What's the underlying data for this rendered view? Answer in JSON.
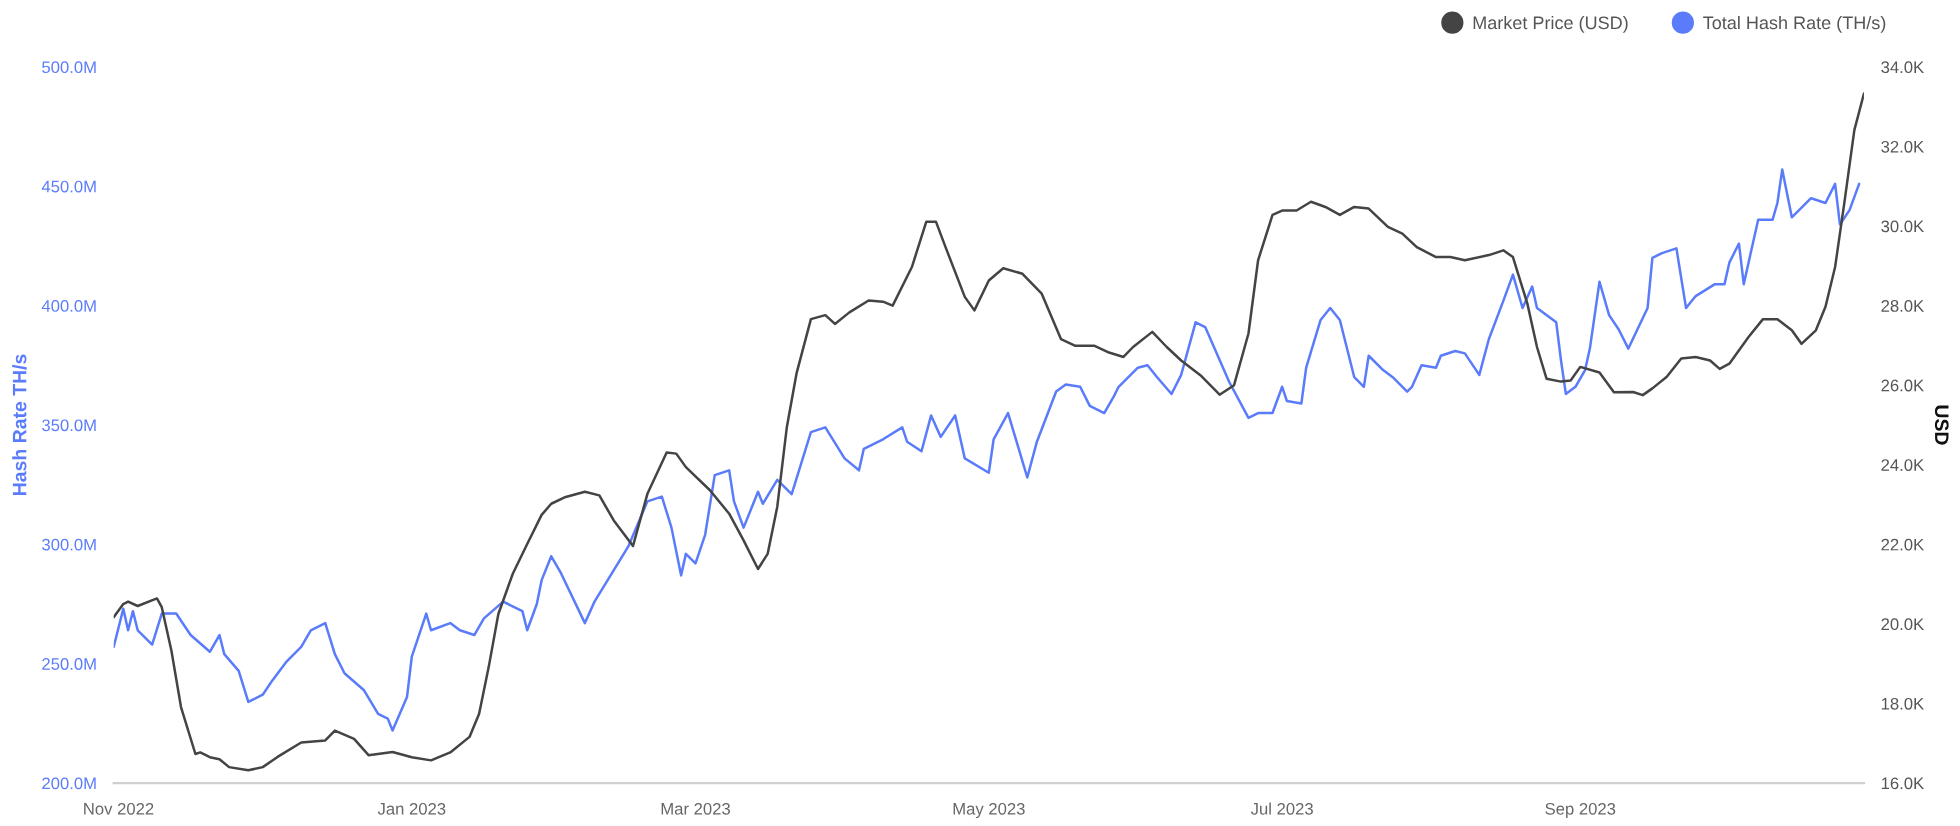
{
  "chart_data": {
    "type": "line",
    "legend": "top right",
    "ylabel": "Hash Rate TH/s",
    "y2label": "USD",
    "xlim": [
      "2022-10-31",
      "2023-10-30"
    ],
    "xticks": [
      {
        "value": "2022-11-01",
        "label": "Nov 2022"
      },
      {
        "value": "2023-01-01",
        "label": "Jan 2023"
      },
      {
        "value": "2023-03-01",
        "label": "Mar 2023"
      },
      {
        "value": "2023-05-01",
        "label": "May 2023"
      },
      {
        "value": "2023-07-01",
        "label": "Jul 2023"
      },
      {
        "value": "2023-09-01",
        "label": "Sep 2023"
      }
    ],
    "ylim": [
      200000000.0,
      500000000.0
    ],
    "yticks": [
      {
        "value": 200000000.0,
        "label": "200.0M"
      },
      {
        "value": 250000000.0,
        "label": "250.0M"
      },
      {
        "value": 300000000.0,
        "label": "300.0M"
      },
      {
        "value": 350000000.0,
        "label": "350.0M"
      },
      {
        "value": 400000000.0,
        "label": "400.0M"
      },
      {
        "value": 450000000.0,
        "label": "450.0M"
      },
      {
        "value": 500000000.0,
        "label": "500.0M"
      }
    ],
    "y2lim": [
      16000,
      34000
    ],
    "y2ticks": [
      {
        "value": 16000,
        "label": "16.0K"
      },
      {
        "value": 18000,
        "label": "18.0K"
      },
      {
        "value": 20000,
        "label": "20.0K"
      },
      {
        "value": 22000,
        "label": "22.0K"
      },
      {
        "value": 24000,
        "label": "24.0K"
      },
      {
        "value": 26000,
        "label": "26.0K"
      },
      {
        "value": 28000,
        "label": "28.0K"
      },
      {
        "value": 30000,
        "label": "30.0K"
      },
      {
        "value": 32000,
        "label": "32.0K"
      },
      {
        "value": 34000,
        "label": "34.0K"
      }
    ],
    "series": [
      {
        "name": "Market Price (USD)",
        "color": "#444444",
        "axis": "y2",
        "x": [
          "2022-10-31",
          "2022-11-02",
          "2022-11-03",
          "2022-11-05",
          "2022-11-09",
          "2022-11-10",
          "2022-11-12",
          "2022-11-14",
          "2022-11-17",
          "2022-11-18",
          "2022-11-20",
          "2022-11-22",
          "2022-11-24",
          "2022-11-28",
          "2022-12-01",
          "2022-12-04",
          "2022-12-09",
          "2022-12-14",
          "2022-12-16",
          "2022-12-20",
          "2022-12-23",
          "2022-12-28",
          "2023-01-01",
          "2023-01-05",
          "2023-01-09",
          "2023-01-13",
          "2023-01-15",
          "2023-01-17",
          "2023-01-19",
          "2023-01-22",
          "2023-01-25",
          "2023-01-28",
          "2023-01-30",
          "2023-02-02",
          "2023-02-06",
          "2023-02-09",
          "2023-02-12",
          "2023-02-16",
          "2023-02-19",
          "2023-02-23",
          "2023-02-25",
          "2023-02-27",
          "2023-03-04",
          "2023-03-08",
          "2023-03-11",
          "2023-03-14",
          "2023-03-16",
          "2023-03-18",
          "2023-03-20",
          "2023-03-22",
          "2023-03-25",
          "2023-03-28",
          "2023-03-30",
          "2023-04-02",
          "2023-04-06",
          "2023-04-09",
          "2023-04-11",
          "2023-04-15",
          "2023-04-18",
          "2023-04-20",
          "2023-04-22",
          "2023-04-26",
          "2023-04-28",
          "2023-05-01",
          "2023-05-04",
          "2023-05-08",
          "2023-05-12",
          "2023-05-16",
          "2023-05-19",
          "2023-05-23",
          "2023-05-26",
          "2023-05-29",
          "2023-05-31",
          "2023-06-04",
          "2023-06-07",
          "2023-06-10",
          "2023-06-14",
          "2023-06-18",
          "2023-06-21",
          "2023-06-24",
          "2023-06-26",
          "2023-06-29",
          "2023-07-01",
          "2023-07-04",
          "2023-07-07",
          "2023-07-10",
          "2023-07-13",
          "2023-07-16",
          "2023-07-19",
          "2023-07-23",
          "2023-07-26",
          "2023-07-29",
          "2023-08-02",
          "2023-08-05",
          "2023-08-08",
          "2023-08-13",
          "2023-08-16",
          "2023-08-18",
          "2023-08-21",
          "2023-08-23",
          "2023-08-25",
          "2023-08-28",
          "2023-08-30",
          "2023-09-01",
          "2023-09-05",
          "2023-09-08",
          "2023-09-12",
          "2023-09-14",
          "2023-09-16",
          "2023-09-19",
          "2023-09-22",
          "2023-09-25",
          "2023-09-28",
          "2023-09-30",
          "2023-10-02",
          "2023-10-06",
          "2023-10-09",
          "2023-10-12",
          "2023-10-15",
          "2023-10-17",
          "2023-10-20",
          "2023-10-22",
          "2023-10-24",
          "2023-10-26",
          "2023-10-28",
          "2023-10-30"
        ],
        "values": [
          20170,
          20500,
          20560,
          20450,
          20640,
          20420,
          19330,
          17910,
          16730,
          16770,
          16650,
          16600,
          16400,
          16320,
          16400,
          16650,
          17020,
          17070,
          17320,
          17110,
          16700,
          16780,
          16650,
          16570,
          16770,
          17160,
          17740,
          18920,
          20250,
          21260,
          22010,
          22740,
          23020,
          23190,
          23320,
          23230,
          22600,
          21960,
          23270,
          24310,
          24280,
          23940,
          23360,
          22770,
          22100,
          21380,
          21760,
          22940,
          24950,
          26290,
          27660,
          27760,
          27540,
          27830,
          28130,
          28100,
          28000,
          28970,
          30110,
          30110,
          29470,
          28220,
          27880,
          28630,
          28940,
          28800,
          28300,
          27160,
          26990,
          26990,
          26820,
          26710,
          26960,
          27340,
          26960,
          26620,
          26250,
          25760,
          26000,
          27300,
          29140,
          30280,
          30390,
          30390,
          30610,
          30480,
          30280,
          30480,
          30440,
          29980,
          29810,
          29470,
          29220,
          29220,
          29140,
          29270,
          29390,
          29220,
          28050,
          26960,
          26160,
          26090,
          26120,
          26460,
          26320,
          25820,
          25830,
          25750,
          25920,
          26210,
          26670,
          26710,
          26620,
          26410,
          26540,
          27210,
          27660,
          27660,
          27380,
          27040,
          27380,
          27970,
          28970,
          30650,
          32410,
          33330
        ]
      },
      {
        "name": "Total Hash Rate (TH/s)",
        "color": "#5b7cfa",
        "axis": "y",
        "x": [
          "2022-10-31",
          "2022-11-02",
          "2022-11-03",
          "2022-11-04",
          "2022-11-05",
          "2022-11-08",
          "2022-11-10",
          "2022-11-13",
          "2022-11-16",
          "2022-11-20",
          "2022-11-22",
          "2022-11-23",
          "2022-11-26",
          "2022-11-28",
          "2022-12-01",
          "2022-12-03",
          "2022-12-06",
          "2022-12-09",
          "2022-12-11",
          "2022-12-14",
          "2022-12-16",
          "2022-12-18",
          "2022-12-22",
          "2022-12-25",
          "2022-12-27",
          "2022-12-28",
          "2022-12-31",
          "2023-01-01",
          "2023-01-04",
          "2023-01-05",
          "2023-01-09",
          "2023-01-11",
          "2023-01-14",
          "2023-01-16",
          "2023-01-20",
          "2023-01-24",
          "2023-01-25",
          "2023-01-27",
          "2023-01-28",
          "2023-01-30",
          "2023-02-01",
          "2023-02-06",
          "2023-02-08",
          "2023-02-15",
          "2023-02-19",
          "2023-02-22",
          "2023-02-24",
          "2023-02-26",
          "2023-02-27",
          "2023-03-01",
          "2023-03-03",
          "2023-03-05",
          "2023-03-08",
          "2023-03-09",
          "2023-03-11",
          "2023-03-14",
          "2023-03-15",
          "2023-03-18",
          "2023-03-21",
          "2023-03-25",
          "2023-03-28",
          "2023-04-01",
          "2023-04-04",
          "2023-04-05",
          "2023-04-09",
          "2023-04-13",
          "2023-04-14",
          "2023-04-17",
          "2023-04-19",
          "2023-04-21",
          "2023-04-24",
          "2023-04-26",
          "2023-05-01",
          "2023-05-02",
          "2023-05-05",
          "2023-05-09",
          "2023-05-11",
          "2023-05-15",
          "2023-05-17",
          "2023-05-20",
          "2023-05-22",
          "2023-05-25",
          "2023-05-27",
          "2023-05-28",
          "2023-06-01",
          "2023-06-03",
          "2023-06-05",
          "2023-06-08",
          "2023-06-10",
          "2023-06-13",
          "2023-06-15",
          "2023-06-20",
          "2023-06-24",
          "2023-06-26",
          "2023-06-29",
          "2023-07-01",
          "2023-07-02",
          "2023-07-05",
          "2023-07-06",
          "2023-07-09",
          "2023-07-11",
          "2023-07-13",
          "2023-07-16",
          "2023-07-18",
          "2023-07-19",
          "2023-07-22",
          "2023-07-24",
          "2023-07-27",
          "2023-07-28",
          "2023-07-30",
          "2023-08-02",
          "2023-08-03",
          "2023-08-06",
          "2023-08-08",
          "2023-08-11",
          "2023-08-13",
          "2023-08-16",
          "2023-08-18",
          "2023-08-20",
          "2023-08-22",
          "2023-08-23",
          "2023-08-27",
          "2023-08-28",
          "2023-08-29",
          "2023-08-31",
          "2023-09-02",
          "2023-09-03",
          "2023-09-05",
          "2023-09-07",
          "2023-09-09",
          "2023-09-11",
          "2023-09-15",
          "2023-09-16",
          "2023-09-18",
          "2023-09-21",
          "2023-09-23",
          "2023-09-25",
          "2023-09-29",
          "2023-10-01",
          "2023-10-02",
          "2023-10-04",
          "2023-10-05",
          "2023-10-08",
          "2023-10-11",
          "2023-10-12",
          "2023-10-13",
          "2023-10-15",
          "2023-10-19",
          "2023-10-22",
          "2023-10-24",
          "2023-10-25",
          "2023-10-27",
          "2023-10-29"
        ],
        "values": [
          257000000.0,
          273000000.0,
          264000000.0,
          272000000.0,
          264000000.0,
          258000000.0,
          271000000.0,
          271000000.0,
          262000000.0,
          255000000.0,
          262000000.0,
          254000000.0,
          247000000.0,
          234000000.0,
          237000000.0,
          243000000.0,
          251000000.0,
          257000000.0,
          264000000.0,
          267000000.0,
          254000000.0,
          246000000.0,
          239000000.0,
          229000000.0,
          227000000.0,
          222000000.0,
          236000000.0,
          253000000.0,
          271000000.0,
          264000000.0,
          267000000.0,
          264000000.0,
          262000000.0,
          269000000.0,
          276000000.0,
          272000000.0,
          264000000.0,
          275000000.0,
          285000000.0,
          295000000.0,
          288000000.0,
          267000000.0,
          276000000.0,
          299000000.0,
          318000000.0,
          320000000.0,
          307000000.0,
          287000000.0,
          296000000.0,
          292000000.0,
          304000000.0,
          329000000.0,
          331000000.0,
          318000000.0,
          307000000.0,
          322000000.0,
          317000000.0,
          327000000.0,
          321000000.0,
          347000000.0,
          349000000.0,
          336000000.0,
          331000000.0,
          340000000.0,
          344000000.0,
          349000000.0,
          343000000.0,
          339000000.0,
          354000000.0,
          345000000.0,
          354000000.0,
          336000000.0,
          330000000.0,
          344000000.0,
          355000000.0,
          328000000.0,
          343000000.0,
          364000000.0,
          367000000.0,
          366000000.0,
          358000000.0,
          355000000.0,
          362000000.0,
          366000000.0,
          374000000.0,
          375000000.0,
          370000000.0,
          363000000.0,
          371000000.0,
          393000000.0,
          391000000.0,
          368000000.0,
          353000000.0,
          355000000.0,
          355000000.0,
          366000000.0,
          360000000.0,
          359000000.0,
          374000000.0,
          394000000.0,
          399000000.0,
          394000000.0,
          370000000.0,
          366000000.0,
          379000000.0,
          373000000.0,
          370000000.0,
          364000000.0,
          366000000.0,
          375000000.0,
          374000000.0,
          379000000.0,
          381000000.0,
          380000000.0,
          371000000.0,
          386000000.0,
          402000000.0,
          413000000.0,
          399000000.0,
          408000000.0,
          399000000.0,
          393000000.0,
          377000000.0,
          363000000.0,
          366000000.0,
          373000000.0,
          382000000.0,
          410000000.0,
          396000000.0,
          390000000.0,
          382000000.0,
          399000000.0,
          420000000.0,
          422000000.0,
          424000000.0,
          399000000.0,
          404000000.0,
          409000000.0,
          409000000.0,
          418000000.0,
          426000000.0,
          409000000.0,
          436000000.0,
          436000000.0,
          443000000.0,
          457000000.0,
          437000000.0,
          445000000.0,
          443000000.0,
          451000000.0,
          434000000.0,
          440000000.0,
          451000000.0
        ]
      }
    ]
  }
}
